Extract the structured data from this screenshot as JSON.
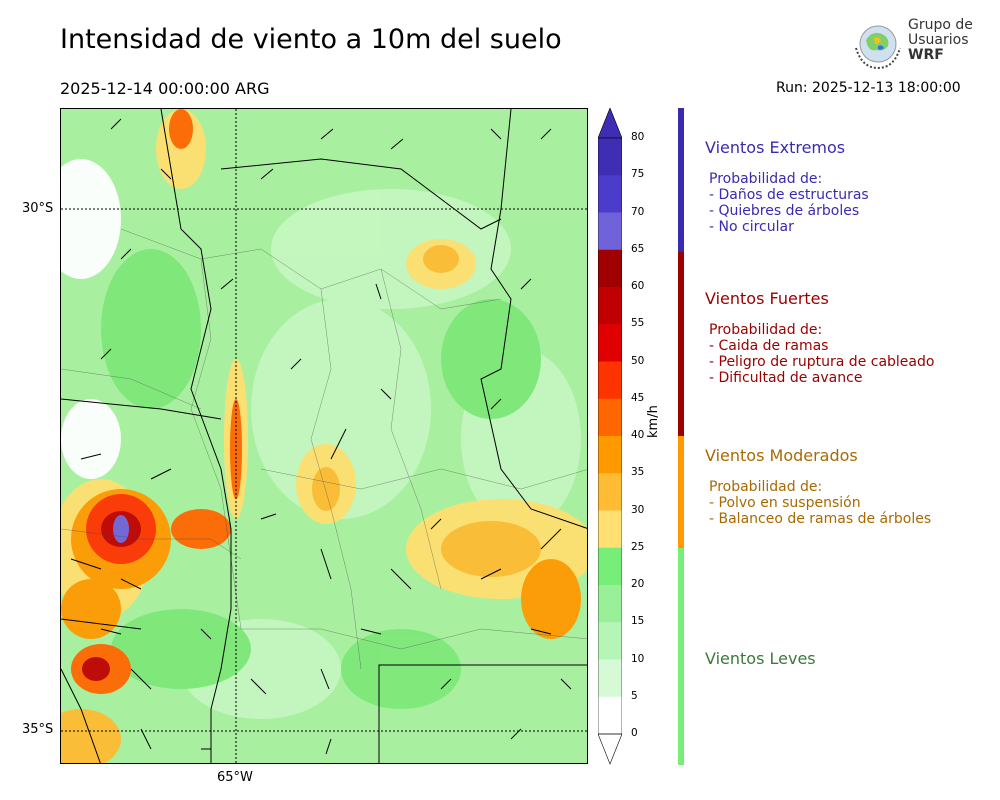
{
  "header": {
    "title": "Intensidad de viento a 10m del suelo",
    "valid_time": "2025-12-14 00:00:00 ARG",
    "run_time": "Run: 2025-12-13 18:00:00"
  },
  "logo": {
    "line1": "Grupo de",
    "line2": "Usuarios",
    "line3": "WRF"
  },
  "map": {
    "lat_labels": [
      "30°S",
      "35°S"
    ],
    "lon_labels": [
      "65°W"
    ]
  },
  "colorbar": {
    "units": "km/h",
    "ticks": [
      "80",
      "75",
      "70",
      "65",
      "60",
      "55",
      "50",
      "45",
      "40",
      "35",
      "30",
      "25",
      "20",
      "15",
      "10",
      "5",
      "0"
    ],
    "colors": [
      "#3f2db4",
      "#4b3ccc",
      "#7062d9",
      "#a00000",
      "#c00000",
      "#e00000",
      "#ff3300",
      "#ff6600",
      "#ff9900",
      "#ffbb33",
      "#ffe070",
      "#77ee77",
      "#99f099",
      "#b5f5b5",
      "#d6fad6",
      "#ffffff"
    ]
  },
  "categories": [
    {
      "name": "Vientos Extremos",
      "color": "#3a2ab0",
      "intro": "Probabilidad de:",
      "items": [
        "- Daños de estructuras",
        "- Quiebres de árboles",
        "- No circular"
      ]
    },
    {
      "name": "Vientos Fuertes",
      "color": "#990000",
      "intro": "Probabilidad de:",
      "items": [
        "- Caida de ramas",
        "- Peligro de ruptura de cableado",
        "- Dificultad de avance"
      ]
    },
    {
      "name": "Vientos Moderados",
      "color": "#a86a00",
      "intro": "Probabilidad de:",
      "items": [
        "- Polvo en suspensión",
        "- Balanceo de ramas de árboles"
      ]
    },
    {
      "name": "Vientos Leves",
      "color": "#3a7a3a",
      "intro": "",
      "items": []
    }
  ],
  "category_bar_colors": [
    "#3a2ab0",
    "#990000",
    "#ff9900",
    "#77ee77"
  ]
}
